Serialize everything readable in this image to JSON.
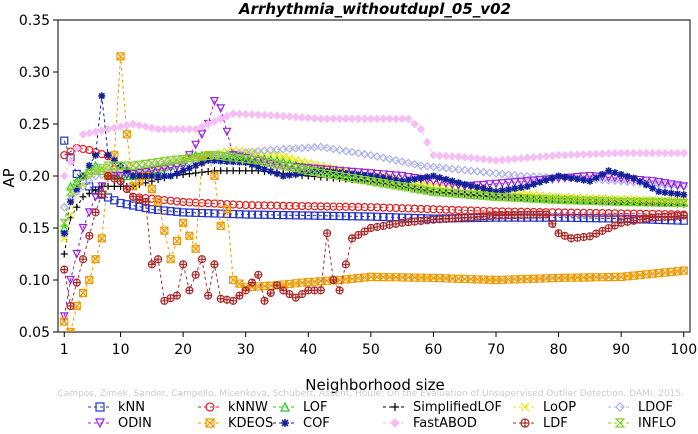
{
  "chart_data": {
    "type": "line",
    "title": "Arrhythmia_withoutdupl_05_v02",
    "xlabel": "Neighborhood size",
    "ylabel": "AP",
    "xlim": [
      0,
      101
    ],
    "ylim": [
      0.05,
      0.35
    ],
    "xticks": [
      1,
      10,
      20,
      30,
      40,
      50,
      60,
      70,
      80,
      90,
      100
    ],
    "yticks": [
      0.05,
      0.1,
      0.15,
      0.2,
      0.25,
      0.3,
      0.35
    ],
    "grid": false,
    "legend_position": "bottom",
    "watermark": "Campos, Zimek, Sander, Campello, Micenkova, Schubert, Assent, Houle: On the Evaluation of Unsupervised Outlier Detection. DAMI, 2015.",
    "series": [
      {
        "name": "kNN",
        "color": "#2233cc",
        "marker": "square",
        "keys": [
          [
            1,
            0.234
          ],
          [
            3,
            0.202
          ],
          [
            5,
            0.19
          ],
          [
            7,
            0.182
          ],
          [
            10,
            0.174
          ],
          [
            15,
            0.168
          ],
          [
            20,
            0.165
          ],
          [
            30,
            0.163
          ],
          [
            40,
            0.162
          ],
          [
            50,
            0.161
          ],
          [
            60,
            0.159
          ],
          [
            70,
            0.16
          ],
          [
            80,
            0.16
          ],
          [
            90,
            0.159
          ],
          [
            100,
            0.157
          ]
        ]
      },
      {
        "name": "kNNW",
        "color": "#dd2222",
        "marker": "circle",
        "keys": [
          [
            1,
            0.22
          ],
          [
            3,
            0.227
          ],
          [
            5,
            0.225
          ],
          [
            8,
            0.219
          ],
          [
            10,
            0.195
          ],
          [
            12,
            0.18
          ],
          [
            20,
            0.175
          ],
          [
            30,
            0.172
          ],
          [
            40,
            0.171
          ],
          [
            50,
            0.17
          ],
          [
            60,
            0.168
          ],
          [
            70,
            0.166
          ],
          [
            80,
            0.165
          ],
          [
            90,
            0.164
          ],
          [
            100,
            0.163
          ]
        ]
      },
      {
        "name": "LOF",
        "color": "#22cc22",
        "marker": "triangle-up",
        "keys": [
          [
            1,
            0.15
          ],
          [
            2,
            0.19
          ],
          [
            4,
            0.2
          ],
          [
            6,
            0.21
          ],
          [
            8,
            0.2
          ],
          [
            12,
            0.2
          ],
          [
            18,
            0.21
          ],
          [
            22,
            0.22
          ],
          [
            28,
            0.22
          ],
          [
            35,
            0.215
          ],
          [
            42,
            0.205
          ],
          [
            50,
            0.195
          ],
          [
            60,
            0.185
          ],
          [
            70,
            0.18
          ],
          [
            80,
            0.178
          ],
          [
            90,
            0.176
          ],
          [
            100,
            0.175
          ]
        ]
      },
      {
        "name": "SimplifiedLOF",
        "color": "#000000",
        "marker": "plus",
        "keys": [
          [
            1,
            0.125
          ],
          [
            2,
            0.16
          ],
          [
            4,
            0.18
          ],
          [
            7,
            0.19
          ],
          [
            12,
            0.19
          ],
          [
            18,
            0.2
          ],
          [
            25,
            0.205
          ],
          [
            32,
            0.205
          ],
          [
            40,
            0.2
          ],
          [
            50,
            0.195
          ],
          [
            60,
            0.185
          ],
          [
            70,
            0.18
          ],
          [
            80,
            0.178
          ],
          [
            90,
            0.175
          ],
          [
            100,
            0.173
          ]
        ]
      },
      {
        "name": "LoOP",
        "color": "#e8e800",
        "marker": "x",
        "keys": [
          [
            1,
            0.14
          ],
          [
            3,
            0.185
          ],
          [
            6,
            0.205
          ],
          [
            10,
            0.205
          ],
          [
            15,
            0.205
          ],
          [
            20,
            0.215
          ],
          [
            28,
            0.225
          ],
          [
            35,
            0.22
          ],
          [
            42,
            0.21
          ],
          [
            50,
            0.2
          ],
          [
            60,
            0.19
          ],
          [
            70,
            0.185
          ],
          [
            80,
            0.18
          ],
          [
            90,
            0.178
          ],
          [
            100,
            0.176
          ]
        ]
      },
      {
        "name": "LDOF",
        "color": "#aab0ee",
        "marker": "diamond",
        "keys": [
          [
            1,
            0.17
          ],
          [
            3,
            0.185
          ],
          [
            6,
            0.2
          ],
          [
            10,
            0.205
          ],
          [
            18,
            0.21
          ],
          [
            26,
            0.22
          ],
          [
            34,
            0.225
          ],
          [
            42,
            0.228
          ],
          [
            50,
            0.22
          ],
          [
            58,
            0.21
          ],
          [
            66,
            0.205
          ],
          [
            74,
            0.2
          ],
          [
            82,
            0.198
          ],
          [
            90,
            0.195
          ],
          [
            100,
            0.19
          ]
        ]
      },
      {
        "name": "ODIN",
        "color": "#9922dd",
        "marker": "triangle-down",
        "keys": [
          [
            1,
            0.065
          ],
          [
            2,
            0.1
          ],
          [
            4,
            0.15
          ],
          [
            6,
            0.18
          ],
          [
            8,
            0.2
          ],
          [
            10,
            0.2
          ],
          [
            15,
            0.205
          ],
          [
            20,
            0.21
          ],
          [
            24,
            0.25
          ],
          [
            25,
            0.272
          ],
          [
            26,
            0.265
          ],
          [
            28,
            0.22
          ],
          [
            35,
            0.21
          ],
          [
            45,
            0.205
          ],
          [
            55,
            0.2
          ],
          [
            65,
            0.19
          ],
          [
            75,
            0.195
          ],
          [
            85,
            0.2
          ],
          [
            95,
            0.195
          ],
          [
            100,
            0.19
          ]
        ]
      },
      {
        "name": "KDEOS",
        "color": "#ee9900",
        "marker": "square-x",
        "keys": [
          [
            1,
            0.06
          ],
          [
            2,
            0.05
          ],
          [
            3,
            0.075
          ],
          [
            5,
            0.1
          ],
          [
            7,
            0.14
          ],
          [
            8,
            0.2
          ],
          [
            9,
            0.22
          ],
          [
            10,
            0.315
          ],
          [
            11,
            0.24
          ],
          [
            12,
            0.19
          ],
          [
            14,
            0.2
          ],
          [
            16,
            0.175
          ],
          [
            18,
            0.12
          ],
          [
            20,
            0.155
          ],
          [
            22,
            0.13
          ],
          [
            23,
            0.215
          ],
          [
            24,
            0.22
          ],
          [
            25,
            0.2
          ],
          [
            26,
            0.152
          ],
          [
            27,
            0.168
          ],
          [
            28,
            0.1
          ],
          [
            30,
            0.093
          ],
          [
            35,
            0.095
          ],
          [
            40,
            0.098
          ],
          [
            45,
            0.1
          ],
          [
            50,
            0.103
          ],
          [
            60,
            0.102
          ],
          [
            70,
            0.1
          ],
          [
            80,
            0.102
          ],
          [
            90,
            0.103
          ],
          [
            100,
            0.109
          ]
        ]
      },
      {
        "name": "COF",
        "color": "#112299",
        "marker": "asterisk",
        "keys": [
          [
            1,
            0.145
          ],
          [
            2,
            0.175
          ],
          [
            4,
            0.2
          ],
          [
            6,
            0.22
          ],
          [
            7,
            0.277
          ],
          [
            8,
            0.22
          ],
          [
            12,
            0.2
          ],
          [
            18,
            0.2
          ],
          [
            24,
            0.215
          ],
          [
            30,
            0.213
          ],
          [
            36,
            0.2
          ],
          [
            42,
            0.205
          ],
          [
            50,
            0.2
          ],
          [
            55,
            0.195
          ],
          [
            60,
            0.2
          ],
          [
            65,
            0.192
          ],
          [
            70,
            0.185
          ],
          [
            75,
            0.19
          ],
          [
            80,
            0.2
          ],
          [
            85,
            0.195
          ],
          [
            88,
            0.205
          ],
          [
            92,
            0.198
          ],
          [
            96,
            0.185
          ],
          [
            100,
            0.182
          ]
        ]
      },
      {
        "name": "FastABOD",
        "color": "#f5bff5",
        "marker": "diamond-filled",
        "keys": [
          [
            1,
            0.2
          ],
          [
            4,
            0.24
          ],
          [
            8,
            0.245
          ],
          [
            12,
            0.25
          ],
          [
            16,
            0.245
          ],
          [
            22,
            0.245
          ],
          [
            28,
            0.26
          ],
          [
            35,
            0.258
          ],
          [
            42,
            0.255
          ],
          [
            50,
            0.255
          ],
          [
            56,
            0.255
          ],
          [
            58,
            0.245
          ],
          [
            60,
            0.22
          ],
          [
            65,
            0.218
          ],
          [
            70,
            0.215
          ],
          [
            80,
            0.22
          ],
          [
            90,
            0.222
          ],
          [
            100,
            0.222
          ]
        ]
      },
      {
        "name": "LDF",
        "color": "#aa2a2a",
        "marker": "circle-plus",
        "keys": [
          [
            1,
            0.11
          ],
          [
            2,
            0.075
          ],
          [
            4,
            0.12
          ],
          [
            6,
            0.165
          ],
          [
            8,
            0.2
          ],
          [
            10,
            0.195
          ],
          [
            12,
            0.18
          ],
          [
            14,
            0.175
          ],
          [
            15,
            0.115
          ],
          [
            16,
            0.12
          ],
          [
            17,
            0.08
          ],
          [
            19,
            0.085
          ],
          [
            20,
            0.115
          ],
          [
            21,
            0.09
          ],
          [
            23,
            0.12
          ],
          [
            24,
            0.085
          ],
          [
            25,
            0.115
          ],
          [
            26,
            0.082
          ],
          [
            28,
            0.08
          ],
          [
            30,
            0.09
          ],
          [
            32,
            0.105
          ],
          [
            33,
            0.08
          ],
          [
            35,
            0.095
          ],
          [
            36,
            0.09
          ],
          [
            38,
            0.083
          ],
          [
            40,
            0.09
          ],
          [
            42,
            0.09
          ],
          [
            43,
            0.145
          ],
          [
            44,
            0.1
          ],
          [
            45,
            0.09
          ],
          [
            47,
            0.14
          ],
          [
            50,
            0.15
          ],
          [
            55,
            0.155
          ],
          [
            60,
            0.158
          ],
          [
            70,
            0.162
          ],
          [
            78,
            0.163
          ],
          [
            80,
            0.145
          ],
          [
            82,
            0.14
          ],
          [
            85,
            0.142
          ],
          [
            90,
            0.155
          ],
          [
            95,
            0.16
          ],
          [
            100,
            0.162
          ]
        ]
      },
      {
        "name": "INFLO",
        "color": "#88cc33",
        "marker": "hourglass",
        "keys": [
          [
            1,
            0.155
          ],
          [
            2,
            0.185
          ],
          [
            4,
            0.2
          ],
          [
            6,
            0.205
          ],
          [
            8,
            0.21
          ],
          [
            12,
            0.21
          ],
          [
            18,
            0.215
          ],
          [
            25,
            0.22
          ],
          [
            32,
            0.215
          ],
          [
            40,
            0.205
          ],
          [
            50,
            0.195
          ],
          [
            60,
            0.185
          ],
          [
            70,
            0.18
          ],
          [
            80,
            0.177
          ],
          [
            90,
            0.175
          ],
          [
            100,
            0.174
          ]
        ]
      }
    ]
  }
}
